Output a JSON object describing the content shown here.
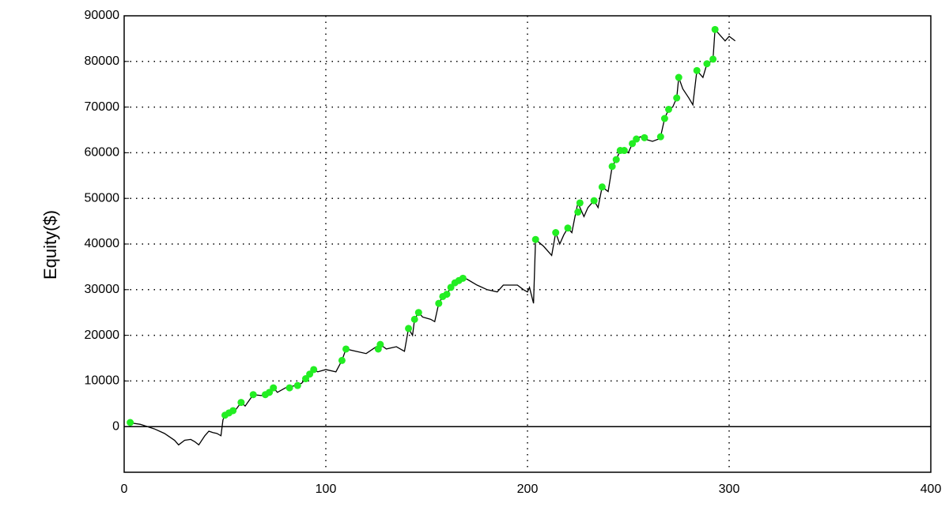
{
  "chart_data": {
    "type": "line",
    "y_label": "Equity($)",
    "xlim": [
      0,
      400
    ],
    "xticks": [
      0,
      100,
      200,
      300,
      400
    ],
    "ylim": [
      -10000,
      90000
    ],
    "yticks": [
      0,
      10000,
      20000,
      30000,
      40000,
      50000,
      60000,
      70000,
      80000,
      90000
    ],
    "grid": true,
    "color": "#000000",
    "x": [
      2,
      8,
      15,
      20,
      25,
      27,
      30,
      33,
      35,
      37,
      40,
      42,
      44,
      46,
      48,
      49,
      50,
      52,
      55,
      58,
      60,
      64,
      68,
      70,
      72,
      74,
      76,
      80,
      85,
      88,
      90,
      92,
      94,
      96,
      100,
      105,
      108,
      110,
      115,
      120,
      125,
      127,
      130,
      135,
      139,
      141,
      143,
      144,
      146,
      148,
      152,
      154,
      156,
      158,
      160,
      162,
      164,
      166,
      168,
      170,
      175,
      180,
      185,
      188,
      195,
      198,
      200,
      201,
      203,
      204,
      208,
      212,
      214,
      216,
      218,
      220,
      222,
      224,
      225,
      228,
      230,
      233,
      235,
      237,
      240,
      242,
      244,
      246,
      248,
      250,
      252,
      254,
      256,
      258,
      262,
      265,
      266,
      268,
      270,
      272,
      274,
      275,
      277,
      280,
      282,
      284,
      287,
      289,
      291,
      292,
      293,
      296,
      298,
      300,
      303
    ],
    "values": [
      900,
      500,
      -500,
      -1500,
      -3000,
      -4000,
      -3000,
      -2800,
      -3300,
      -4000,
      -2000,
      -1000,
      -1300,
      -1500,
      -2000,
      1500,
      2500,
      3000,
      3500,
      5300,
      4500,
      7000,
      6800,
      7000,
      7500,
      8500,
      7500,
      8500,
      9000,
      9500,
      10500,
      11500,
      12500,
      12000,
      12500,
      12000,
      14500,
      17000,
      16500,
      16000,
      17500,
      18000,
      17000,
      17500,
      16500,
      21500,
      20000,
      23500,
      25000,
      24000,
      23500,
      23000,
      27000,
      28500,
      29000,
      30500,
      31500,
      32000,
      32500,
      32300,
      31000,
      30000,
      29500,
      31000,
      31000,
      30000,
      29500,
      30500,
      27000,
      41000,
      39500,
      37500,
      42500,
      40000,
      42000,
      43500,
      42500,
      47000,
      49000,
      46000,
      48000,
      49500,
      48000,
      52500,
      51500,
      57000,
      58500,
      60500,
      60500,
      60000,
      62000,
      63000,
      63500,
      63000,
      62500,
      63000,
      63500,
      67500,
      69500,
      70000,
      72000,
      76500,
      74000,
      72000,
      70500,
      78000,
      76500,
      79500,
      80000,
      80500,
      87000,
      85500,
      84500,
      85500,
      84500
    ],
    "markers": {
      "color": "#22ee22",
      "x": [
        3,
        50,
        52,
        54,
        58,
        64,
        70,
        72,
        74,
        82,
        86,
        90,
        92,
        94,
        108,
        110,
        126,
        127,
        141,
        144,
        146,
        156,
        158,
        160,
        162,
        164,
        166,
        168,
        204,
        214,
        220,
        225,
        226,
        233,
        237,
        242,
        244,
        246,
        248,
        252,
        254,
        258,
        266,
        268,
        270,
        274,
        275,
        284,
        289,
        292,
        293
      ],
      "values": [
        900,
        2500,
        3000,
        3500,
        5300,
        7000,
        7000,
        7500,
        8500,
        8500,
        9000,
        10500,
        11500,
        12500,
        14500,
        17000,
        17000,
        18000,
        21500,
        23500,
        25000,
        27000,
        28500,
        29000,
        30500,
        31500,
        32000,
        32500,
        41000,
        42500,
        43500,
        47000,
        49000,
        49500,
        52500,
        57000,
        58500,
        60500,
        60500,
        62000,
        63000,
        63300,
        63500,
        67500,
        69500,
        72000,
        76500,
        78000,
        79500,
        80500,
        87000
      ]
    }
  }
}
